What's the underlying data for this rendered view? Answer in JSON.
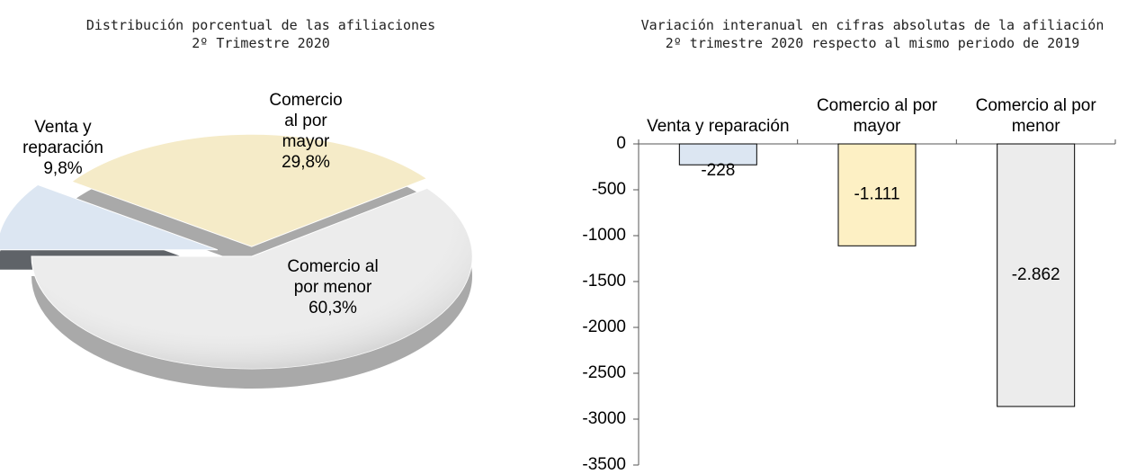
{
  "chart_data": [
    {
      "type": "pie",
      "title": "Distribución porcentual de las afiliaciones",
      "subtitle": "2º Trimestre 2020",
      "categories": [
        "Venta y reparación",
        "Comercio al por mayor",
        "Comercio al por menor"
      ],
      "values": [
        9.8,
        29.8,
        60.3
      ],
      "value_labels": [
        "9,8%",
        "29,8%",
        "60,3%"
      ],
      "colors": [
        "#dce6f2",
        "#f5ebc8",
        "#ececec"
      ]
    },
    {
      "type": "bar",
      "title": "Variación interanual en cifras absolutas de la afiliación",
      "subtitle": "2º trimestre 2020 respecto al mismo periodo de 2019",
      "categories": [
        "Venta y reparación",
        "Comercio al por mayor",
        "Comercio al por menor"
      ],
      "values": [
        -228,
        -1111,
        -2862
      ],
      "value_labels": [
        "-228",
        "-1.111",
        "-2.862"
      ],
      "colors": [
        "#dce6f2",
        "#fdf0c4",
        "#ececec"
      ],
      "ylim": [
        -3500,
        0
      ],
      "yticks": [
        0,
        -500,
        -1000,
        -1500,
        -2000,
        -2500,
        -3000,
        -3500
      ]
    }
  ]
}
